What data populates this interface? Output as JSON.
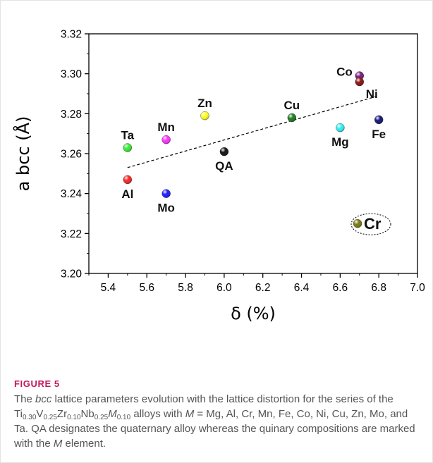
{
  "chart_data": {
    "type": "scatter",
    "xlabel": "δ (%)",
    "ylabel": "a bcc (Å)",
    "xlim": [
      5.3,
      7.0
    ],
    "ylim": [
      3.2,
      3.32
    ],
    "xticks": [
      "5.4",
      "5.6",
      "5.8",
      "6.0",
      "6.2",
      "6.4",
      "6.6",
      "6.8",
      "7.0"
    ],
    "yticks": [
      "3.20",
      "3.22",
      "3.24",
      "3.26",
      "3.28",
      "3.30",
      "3.32"
    ],
    "points": [
      {
        "label": "Al",
        "x": 5.5,
        "y": 3.247,
        "color": "#ff2020",
        "labelPos": "below"
      },
      {
        "label": "Ta",
        "x": 5.5,
        "y": 3.263,
        "color": "#33ee33",
        "labelPos": "above"
      },
      {
        "label": "Mo",
        "x": 5.7,
        "y": 3.24,
        "color": "#1a1aff",
        "labelPos": "below"
      },
      {
        "label": "Mn",
        "x": 5.7,
        "y": 3.267,
        "color": "#ff30ff",
        "labelPos": "above"
      },
      {
        "label": "Zn",
        "x": 5.9,
        "y": 3.279,
        "color": "#ffff20",
        "labelPos": "above"
      },
      {
        "label": "QA",
        "x": 6.0,
        "y": 3.261,
        "color": "#111111",
        "labelPos": "below"
      },
      {
        "label": "Cu",
        "x": 6.35,
        "y": 3.278,
        "color": "#1c7a1c",
        "labelPos": "above"
      },
      {
        "label": "Mg",
        "x": 6.6,
        "y": 3.273,
        "color": "#30f0f0",
        "labelPos": "below"
      },
      {
        "label": "Co",
        "x": 6.7,
        "y": 3.299,
        "color": "#7a1a7a",
        "labelPos": "left"
      },
      {
        "label": "Ni",
        "x": 6.7,
        "y": 3.296,
        "color": "#8a1010",
        "labelPos": "right"
      },
      {
        "label": "Fe",
        "x": 6.8,
        "y": 3.277,
        "color": "#14147a",
        "labelPos": "below"
      },
      {
        "label": "Cr",
        "x": 6.69,
        "y": 3.225,
        "color": "#7a7a10",
        "labelPos": "right"
      }
    ],
    "trendline": {
      "style": "dashed",
      "x": [
        5.5,
        6.8
      ],
      "y": [
        3.253,
        3.289
      ]
    },
    "highlight": {
      "point": "Cr",
      "style": "dotted-ellipse"
    },
    "grid": false,
    "legend": "none"
  },
  "caption": {
    "figure_label": "FIGURE 5",
    "text_html": "The <i>bcc</i> lattice parameters evolution with the lattice distortion for the series of the Ti<sub>0.30</sub>V<sub>0.25</sub>Zr<sub>0.10</sub>Nb<sub>0.25</sub><i>M</i><sub>0.10</sub> alloys with <i>M</i> = Mg, Al, Cr, Mn, Fe, Co, Ni, Cu, Zn, Mo, and Ta. QA designates the quaternary alloy whereas the quinary compositions are marked with the <i>M</i> element."
  }
}
